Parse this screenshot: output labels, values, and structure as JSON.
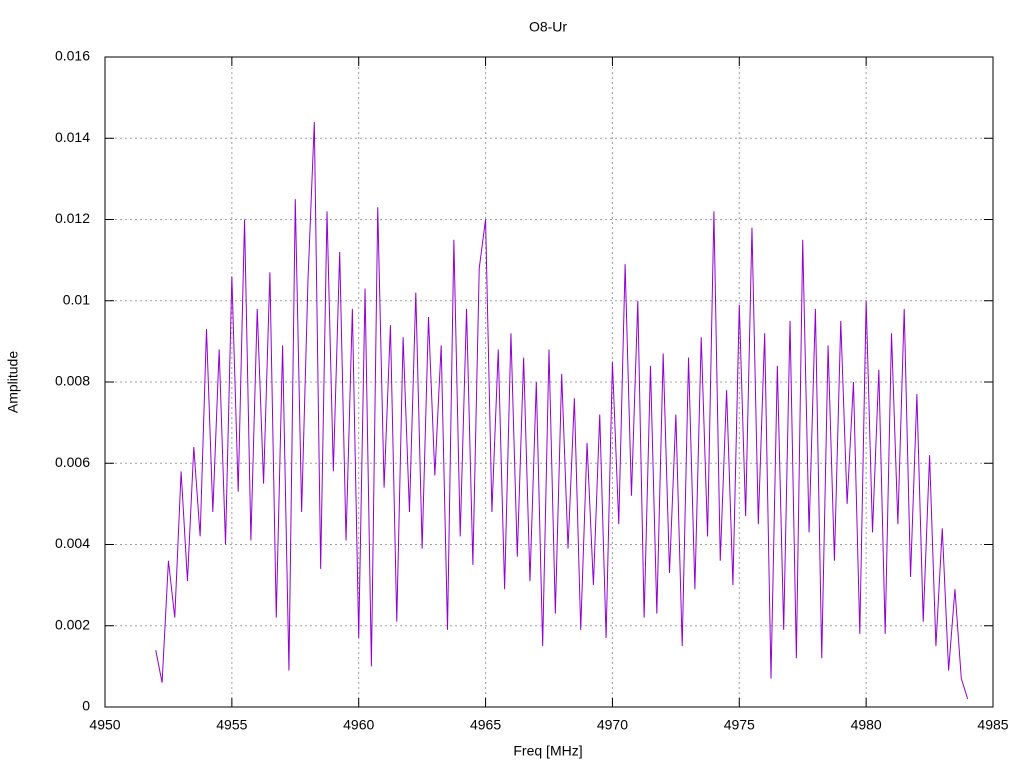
{
  "chart_data": {
    "type": "line",
    "title": "O8-Ur",
    "x_label": "Freq [MHz]",
    "y_label": "Amplitude",
    "xlim": [
      4950,
      4985
    ],
    "xticks": [
      4950,
      4955,
      4960,
      4965,
      4970,
      4975,
      4980,
      4985
    ],
    "ylim": [
      0,
      0.016
    ],
    "yticks": [
      0,
      0.002,
      0.004,
      0.006,
      0.008,
      0.01,
      0.012,
      0.014,
      0.016
    ],
    "grid": true,
    "x": [
      4952,
      4952.25,
      4952.5,
      4952.75,
      4953,
      4953.25,
      4953.5,
      4953.75,
      4954,
      4954.25,
      4954.5,
      4954.75,
      4955,
      4955.25,
      4955.5,
      4955.75,
      4956,
      4956.25,
      4956.5,
      4956.75,
      4957,
      4957.25,
      4957.5,
      4957.75,
      4958,
      4958.25,
      4958.5,
      4958.75,
      4959,
      4959.25,
      4959.5,
      4959.75,
      4960,
      4960.25,
      4960.5,
      4960.75,
      4961,
      4961.25,
      4961.5,
      4961.75,
      4962,
      4962.25,
      4962.5,
      4962.75,
      4963,
      4963.25,
      4963.5,
      4963.75,
      4964,
      4964.25,
      4964.5,
      4964.75,
      4965,
      4965.25,
      4965.5,
      4965.75,
      4966,
      4966.25,
      4966.5,
      4966.75,
      4967,
      4967.25,
      4967.5,
      4967.75,
      4968,
      4968.25,
      4968.5,
      4968.75,
      4969,
      4969.25,
      4969.5,
      4969.75,
      4970,
      4970.25,
      4970.5,
      4970.75,
      4971,
      4971.25,
      4971.5,
      4971.75,
      4972,
      4972.25,
      4972.5,
      4972.75,
      4973,
      4973.25,
      4973.5,
      4973.75,
      4974,
      4974.25,
      4974.5,
      4974.75,
      4975,
      4975.25,
      4975.5,
      4975.75,
      4976,
      4976.25,
      4976.5,
      4976.75,
      4977,
      4977.25,
      4977.5,
      4977.75,
      4978,
      4978.25,
      4978.5,
      4978.75,
      4979,
      4979.25,
      4979.5,
      4979.75,
      4980,
      4980.25,
      4980.5,
      4980.75,
      4981,
      4981.25,
      4981.5,
      4981.75,
      4982,
      4982.25,
      4982.5,
      4982.75,
      4983,
      4983.25,
      4983.5,
      4983.75,
      4984
    ],
    "series": [
      {
        "color": "#9400d3",
        "values": [
          0.0014,
          0.0006,
          0.0036,
          0.0022,
          0.0058,
          0.0031,
          0.0064,
          0.0042,
          0.0093,
          0.0048,
          0.0088,
          0.004,
          0.0106,
          0.0053,
          0.012,
          0.0041,
          0.0098,
          0.0055,
          0.0107,
          0.0022,
          0.0089,
          0.0009,
          0.0125,
          0.0048,
          0.0105,
          0.0144,
          0.0034,
          0.0122,
          0.0058,
          0.0112,
          0.0041,
          0.0098,
          0.0017,
          0.0103,
          0.001,
          0.0123,
          0.0054,
          0.0094,
          0.0021,
          0.0091,
          0.0048,
          0.0102,
          0.0039,
          0.0096,
          0.0057,
          0.0089,
          0.0019,
          0.0115,
          0.0042,
          0.0098,
          0.0035,
          0.0108,
          0.012,
          0.0048,
          0.0088,
          0.0029,
          0.0092,
          0.0037,
          0.0086,
          0.0031,
          0.008,
          0.0015,
          0.0088,
          0.0023,
          0.0082,
          0.0039,
          0.0076,
          0.0019,
          0.0065,
          0.003,
          0.0072,
          0.0017,
          0.0085,
          0.0045,
          0.0109,
          0.0052,
          0.01,
          0.0022,
          0.0084,
          0.0023,
          0.0087,
          0.0033,
          0.0072,
          0.0015,
          0.0086,
          0.0029,
          0.0091,
          0.0042,
          0.0122,
          0.0036,
          0.0078,
          0.003,
          0.0099,
          0.0047,
          0.0118,
          0.0045,
          0.0092,
          0.0007,
          0.0084,
          0.0019,
          0.0095,
          0.0012,
          0.0115,
          0.0043,
          0.0098,
          0.0012,
          0.0089,
          0.0036,
          0.0095,
          0.005,
          0.008,
          0.0018,
          0.01,
          0.0043,
          0.0083,
          0.0018,
          0.0092,
          0.0045,
          0.0098,
          0.0032,
          0.0077,
          0.0021,
          0.0062,
          0.0015,
          0.0044,
          0.0009,
          0.0029,
          0.0007,
          0.0002
        ]
      }
    ]
  }
}
